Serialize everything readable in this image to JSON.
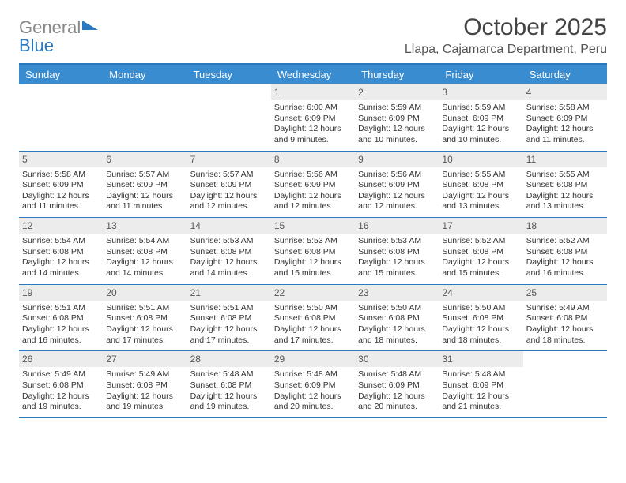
{
  "logo": {
    "gray": "General",
    "blue": "Blue"
  },
  "title": "October 2025",
  "location": "Llapa, Cajamarca Department, Peru",
  "colors": {
    "header_bg": "#3a8cd1",
    "border": "#2a78c0",
    "daynum_bg": "#ececec",
    "text": "#333333"
  },
  "day_names": [
    "Sunday",
    "Monday",
    "Tuesday",
    "Wednesday",
    "Thursday",
    "Friday",
    "Saturday"
  ],
  "weeks": [
    [
      {
        "n": "",
        "sr": "",
        "ss": "",
        "dl": ""
      },
      {
        "n": "",
        "sr": "",
        "ss": "",
        "dl": ""
      },
      {
        "n": "",
        "sr": "",
        "ss": "",
        "dl": ""
      },
      {
        "n": "1",
        "sr": "6:00 AM",
        "ss": "6:09 PM",
        "dl": "12 hours and 9 minutes."
      },
      {
        "n": "2",
        "sr": "5:59 AM",
        "ss": "6:09 PM",
        "dl": "12 hours and 10 minutes."
      },
      {
        "n": "3",
        "sr": "5:59 AM",
        "ss": "6:09 PM",
        "dl": "12 hours and 10 minutes."
      },
      {
        "n": "4",
        "sr": "5:58 AM",
        "ss": "6:09 PM",
        "dl": "12 hours and 11 minutes."
      }
    ],
    [
      {
        "n": "5",
        "sr": "5:58 AM",
        "ss": "6:09 PM",
        "dl": "12 hours and 11 minutes."
      },
      {
        "n": "6",
        "sr": "5:57 AM",
        "ss": "6:09 PM",
        "dl": "12 hours and 11 minutes."
      },
      {
        "n": "7",
        "sr": "5:57 AM",
        "ss": "6:09 PM",
        "dl": "12 hours and 12 minutes."
      },
      {
        "n": "8",
        "sr": "5:56 AM",
        "ss": "6:09 PM",
        "dl": "12 hours and 12 minutes."
      },
      {
        "n": "9",
        "sr": "5:56 AM",
        "ss": "6:09 PM",
        "dl": "12 hours and 12 minutes."
      },
      {
        "n": "10",
        "sr": "5:55 AM",
        "ss": "6:08 PM",
        "dl": "12 hours and 13 minutes."
      },
      {
        "n": "11",
        "sr": "5:55 AM",
        "ss": "6:08 PM",
        "dl": "12 hours and 13 minutes."
      }
    ],
    [
      {
        "n": "12",
        "sr": "5:54 AM",
        "ss": "6:08 PM",
        "dl": "12 hours and 14 minutes."
      },
      {
        "n": "13",
        "sr": "5:54 AM",
        "ss": "6:08 PM",
        "dl": "12 hours and 14 minutes."
      },
      {
        "n": "14",
        "sr": "5:53 AM",
        "ss": "6:08 PM",
        "dl": "12 hours and 14 minutes."
      },
      {
        "n": "15",
        "sr": "5:53 AM",
        "ss": "6:08 PM",
        "dl": "12 hours and 15 minutes."
      },
      {
        "n": "16",
        "sr": "5:53 AM",
        "ss": "6:08 PM",
        "dl": "12 hours and 15 minutes."
      },
      {
        "n": "17",
        "sr": "5:52 AM",
        "ss": "6:08 PM",
        "dl": "12 hours and 15 minutes."
      },
      {
        "n": "18",
        "sr": "5:52 AM",
        "ss": "6:08 PM",
        "dl": "12 hours and 16 minutes."
      }
    ],
    [
      {
        "n": "19",
        "sr": "5:51 AM",
        "ss": "6:08 PM",
        "dl": "12 hours and 16 minutes."
      },
      {
        "n": "20",
        "sr": "5:51 AM",
        "ss": "6:08 PM",
        "dl": "12 hours and 17 minutes."
      },
      {
        "n": "21",
        "sr": "5:51 AM",
        "ss": "6:08 PM",
        "dl": "12 hours and 17 minutes."
      },
      {
        "n": "22",
        "sr": "5:50 AM",
        "ss": "6:08 PM",
        "dl": "12 hours and 17 minutes."
      },
      {
        "n": "23",
        "sr": "5:50 AM",
        "ss": "6:08 PM",
        "dl": "12 hours and 18 minutes."
      },
      {
        "n": "24",
        "sr": "5:50 AM",
        "ss": "6:08 PM",
        "dl": "12 hours and 18 minutes."
      },
      {
        "n": "25",
        "sr": "5:49 AM",
        "ss": "6:08 PM",
        "dl": "12 hours and 18 minutes."
      }
    ],
    [
      {
        "n": "26",
        "sr": "5:49 AM",
        "ss": "6:08 PM",
        "dl": "12 hours and 19 minutes."
      },
      {
        "n": "27",
        "sr": "5:49 AM",
        "ss": "6:08 PM",
        "dl": "12 hours and 19 minutes."
      },
      {
        "n": "28",
        "sr": "5:48 AM",
        "ss": "6:08 PM",
        "dl": "12 hours and 19 minutes."
      },
      {
        "n": "29",
        "sr": "5:48 AM",
        "ss": "6:09 PM",
        "dl": "12 hours and 20 minutes."
      },
      {
        "n": "30",
        "sr": "5:48 AM",
        "ss": "6:09 PM",
        "dl": "12 hours and 20 minutes."
      },
      {
        "n": "31",
        "sr": "5:48 AM",
        "ss": "6:09 PM",
        "dl": "12 hours and 21 minutes."
      },
      {
        "n": "",
        "sr": "",
        "ss": "",
        "dl": ""
      }
    ]
  ],
  "labels": {
    "sunrise": "Sunrise:",
    "sunset": "Sunset:",
    "daylight": "Daylight:"
  }
}
